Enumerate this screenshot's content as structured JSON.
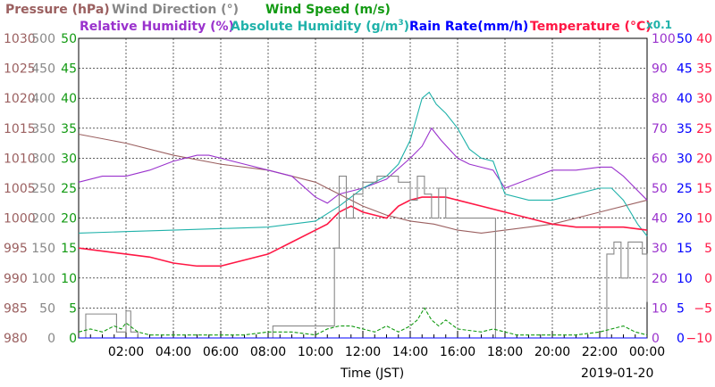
{
  "colors": {
    "pressure": "#9b6060",
    "wind_direction": "#888888",
    "wind_speed": "#129a12",
    "relative_humidity": "#9a32cd",
    "absolute_humidity": "#20b2aa",
    "rain_rate": "#0000ff",
    "temperature": "#ff1744"
  },
  "header": {
    "pressure": "Pressure (hPa)",
    "wind_direction": "Wind Direction (°)",
    "wind_speed": "Wind Speed (m/s)",
    "relative_humidity": "Relative Humidity (%)",
    "absolute_humidity_main": "Absolute Humidity (g/m",
    "absolute_humidity_sup": "3",
    "absolute_humidity_end": ")",
    "rain_rate": "Rain Rate(mm/h)",
    "temperature": "Temperature (°C)",
    "scale_note": "x0.1"
  },
  "axis_labels": {
    "xlabel": "Time (JST)",
    "date": "2019-01-20"
  },
  "chart_data": {
    "type": "line",
    "x_unit": "hours since 00:00 (JST)",
    "xlim": [
      0,
      24
    ],
    "x_ticks": [
      "02:00",
      "04:00",
      "06:00",
      "08:00",
      "10:00",
      "12:00",
      "14:00",
      "16:00",
      "18:00",
      "20:00",
      "22:00",
      "00:00"
    ],
    "grid": true,
    "left_axes": {
      "pressure": {
        "ylim": [
          980,
          1030
        ],
        "ticks": [
          "980",
          "985",
          "990",
          "995",
          "1000",
          "1005",
          "1010",
          "1015",
          "1020",
          "1025",
          "1030"
        ]
      },
      "wind_direction": {
        "ylim": [
          0,
          500
        ],
        "ticks": [
          "0",
          "50",
          "100",
          "150",
          "200",
          "250",
          "300",
          "350",
          "400",
          "450",
          "500"
        ]
      },
      "wind_speed": {
        "ylim": [
          0,
          50
        ],
        "ticks": [
          "0",
          "5",
          "10",
          "15",
          "20",
          "25",
          "30",
          "35",
          "40",
          "45",
          "50"
        ]
      }
    },
    "right_axes": {
      "relative_humidity_absolute_humidity": {
        "ylim": [
          0,
          100
        ],
        "ticks": [
          "0",
          "10",
          "20",
          "30",
          "40",
          "50",
          "60",
          "70",
          "80",
          "90",
          "100"
        ]
      },
      "rain_rate": {
        "ylim": [
          0,
          50
        ],
        "ticks": [
          "0",
          "5",
          "10",
          "15",
          "20",
          "25",
          "30",
          "35",
          "40",
          "45",
          "50"
        ]
      },
      "temperature": {
        "ylim": [
          -10,
          40
        ],
        "ticks": [
          "−10",
          "−5",
          "0",
          "5",
          "10",
          "15",
          "20",
          "25",
          "30",
          "35",
          "40"
        ]
      }
    },
    "series": [
      {
        "name": "Pressure (hPa)",
        "key": "pressure",
        "axis": "pressure",
        "x": [
          0,
          2,
          4,
          6,
          8,
          10,
          11,
          12,
          13,
          14,
          15,
          16,
          17,
          18,
          20,
          22,
          24
        ],
        "y": [
          1014,
          1012.5,
          1010.5,
          1009,
          1008,
          1006,
          1004,
          1002,
          1000.5,
          999.5,
          999,
          998,
          997.5,
          998,
          999,
          1001,
          1003
        ]
      },
      {
        "name": "Relative Humidity (%)",
        "key": "relative_humidity",
        "axis": "relative_humidity_absolute_humidity",
        "x": [
          0,
          1,
          2,
          3,
          4,
          5,
          5.5,
          6,
          7,
          8,
          9,
          10,
          10.5,
          11,
          12,
          13,
          14,
          14.5,
          14.9,
          15.3,
          16,
          16.5,
          17,
          17.5,
          18,
          19,
          20,
          21,
          22,
          22.5,
          23,
          23.5,
          24
        ],
        "y": [
          52,
          54,
          54,
          56,
          59,
          61,
          61,
          60,
          58,
          56,
          54,
          47,
          45,
          48,
          50,
          53,
          60,
          64,
          70,
          66,
          60,
          58,
          57,
          56,
          50,
          53,
          56,
          56,
          57,
          57,
          54,
          50,
          46
        ]
      },
      {
        "name": "Absolute Humidity (g/m3) x0.1",
        "key": "absolute_humidity",
        "axis": "relative_humidity_absolute_humidity",
        "x": [
          0,
          2,
          4,
          6,
          8,
          9,
          10,
          11,
          12,
          13,
          13.5,
          14,
          14.5,
          14.8,
          15.1,
          15.5,
          16,
          16.5,
          17,
          17.5,
          18,
          19,
          20,
          21,
          22,
          22.5,
          23,
          23.3,
          23.6,
          24
        ],
        "y": [
          35,
          35.5,
          36,
          36.5,
          37,
          38,
          39,
          44,
          50,
          54,
          58,
          66,
          80,
          82,
          78,
          75,
          70,
          63,
          60,
          59,
          48,
          46,
          46,
          48,
          50,
          50,
          46,
          42,
          38,
          34
        ]
      },
      {
        "name": "Temperature (°C)",
        "key": "temperature",
        "axis": "temperature",
        "x": [
          0,
          1,
          2,
          3,
          4,
          5,
          6,
          7,
          8,
          9,
          10,
          10.5,
          11,
          11.5,
          12,
          12.5,
          13,
          13.5,
          14,
          14.5,
          15,
          15.5,
          16,
          17,
          17.5,
          18,
          19,
          20,
          21,
          22,
          23,
          24
        ],
        "y": [
          5,
          4.5,
          4,
          3.5,
          2.5,
          2,
          2,
          3,
          4,
          6,
          8,
          9,
          11,
          12,
          11,
          10.5,
          10,
          12,
          13,
          13.5,
          13.5,
          13.5,
          13,
          12,
          11.5,
          11,
          10,
          9,
          8.5,
          8.5,
          8.5,
          8
        ]
      },
      {
        "name": "Wind Direction (°)",
        "key": "wind_direction",
        "axis": "wind_direction",
        "stepped": true,
        "x": [
          0,
          0.3,
          0.5,
          1.5,
          1.6,
          2.0,
          2.2,
          2.5,
          8,
          8.2,
          10.5,
          10.8,
          11,
          11.3,
          11.6,
          12,
          12.3,
          12.6,
          13,
          13.5,
          14,
          14.3,
          14.6,
          14.9,
          15.2,
          15.5,
          17.5,
          17.6,
          17.8,
          22,
          22.3,
          22.6,
          22.9,
          23.2,
          23.5,
          23.8,
          24
        ],
        "y": [
          0,
          40,
          40,
          40,
          10,
          45,
          10,
          0,
          0,
          20,
          20,
          150,
          270,
          200,
          240,
          260,
          260,
          270,
          270,
          260,
          230,
          270,
          240,
          200,
          250,
          200,
          200,
          0,
          0,
          0,
          140,
          160,
          100,
          160,
          160,
          140,
          60
        ]
      },
      {
        "name": "Wind Speed (m/s)",
        "key": "wind_speed",
        "axis": "wind_speed",
        "x": [
          0,
          0.5,
          1,
          1.5,
          1.8,
          2,
          2.5,
          3,
          4,
          5,
          6,
          7,
          8,
          9,
          10,
          10.5,
          11,
          11.5,
          12,
          12.5,
          13,
          13.5,
          14,
          14.3,
          14.6,
          14.9,
          15.2,
          15.5,
          16,
          17,
          17.5,
          18,
          18.5,
          19,
          20,
          21,
          22,
          22.5,
          23,
          23.5,
          24
        ],
        "y": [
          1,
          1.5,
          1,
          2,
          1.5,
          2.5,
          1,
          0.5,
          0.5,
          0.5,
          0.5,
          0.5,
          1,
          1,
          0.5,
          1.5,
          2,
          2,
          1.5,
          1,
          2,
          1,
          2,
          3,
          5,
          3,
          2,
          3,
          1.5,
          1,
          1.5,
          1,
          0.5,
          0.5,
          0.5,
          0.5,
          1,
          1.5,
          2,
          1,
          0.5
        ]
      },
      {
        "name": "Rain Rate(mm/h)",
        "key": "rain_rate",
        "axis": "rain_rate",
        "x": [
          0,
          24
        ],
        "y": [
          0,
          0
        ]
      }
    ]
  }
}
